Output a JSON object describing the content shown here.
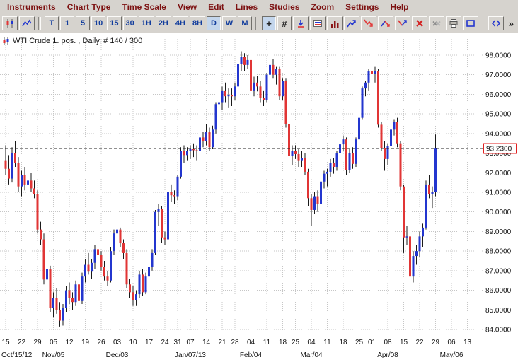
{
  "menu_bar": {
    "items": [
      "Instruments",
      "Chart Type",
      "Time Scale",
      "View",
      "Edit",
      "Lines",
      "Studies",
      "Zoom",
      "Settings",
      "Help"
    ]
  },
  "toolbar": {
    "chart_type_buttons": [
      {
        "name": "candlestick-chart-button",
        "icon": "candlestick-icon"
      },
      {
        "name": "line-chart-button",
        "icon": "line-chart-icon"
      }
    ],
    "timeframe_buttons": [
      "T",
      "1",
      "5",
      "10",
      "15",
      "30",
      "1H",
      "2H",
      "4H",
      "8H",
      "D",
      "W",
      "M"
    ],
    "active_timeframe": "D",
    "tool_buttons": [
      {
        "name": "crosshair-button",
        "label": "+",
        "active": true
      },
      {
        "name": "grid-button",
        "label": "#"
      },
      {
        "name": "data-cursor-button",
        "icon": "cursor-down-icon"
      },
      {
        "name": "chart-values-button",
        "icon": "values-icon"
      },
      {
        "name": "volume-button",
        "icon": "volume-icon"
      },
      {
        "name": "trend-up-button",
        "icon": "zigzag-up-icon"
      },
      {
        "name": "trend-down-button",
        "icon": "zigzag-down-icon"
      },
      {
        "name": "trend-up-down-button",
        "icon": "zigzag-mixed-icon"
      },
      {
        "name": "trend-down-up-button",
        "icon": "zigzag-mixed2-icon"
      },
      {
        "name": "delete-drawing-button",
        "icon": "delete-x-icon"
      },
      {
        "name": "delete-all-button",
        "icon": "double-x-icon"
      },
      {
        "name": "print-button",
        "icon": "printer-icon"
      },
      {
        "name": "copy-chart-button",
        "icon": "frame-icon"
      }
    ],
    "right_buttons": [
      {
        "name": "pane-arrows-button",
        "icon": "pane-arrows-icon"
      },
      {
        "name": "toolbar-overflow-button",
        "label": "»"
      }
    ]
  },
  "chart": {
    "title": "WTI Crude 1. pos. , Daily, # 140 / 300",
    "current_price_label": "93.2300"
  },
  "colors": {
    "candle_up": "#2336cf",
    "candle_down": "#e13535",
    "wick": "#1a1a1a",
    "grid": "#c6c6c6",
    "price_line": "#222222",
    "price_box_border": "#e02020",
    "scale_separator": "#555555"
  },
  "chart_data": {
    "type": "candlestick",
    "instrument": "WTI Crude",
    "timeframe": "Daily",
    "current_price": 93.23,
    "y_axis": {
      "min": 84,
      "max": 98,
      "step": 1,
      "labels": [
        "98.0000",
        "97.0000",
        "96.0000",
        "95.0000",
        "94.0000",
        "93.0000",
        "92.0000",
        "91.0000",
        "90.0000",
        "89.0000",
        "88.0000",
        "87.0000",
        "86.0000",
        "85.0000",
        "84.0000"
      ]
    },
    "x_axis": {
      "week_ticks": [
        [
          0,
          "15"
        ],
        [
          5,
          "22"
        ],
        [
          10,
          "29"
        ],
        [
          15,
          "05"
        ],
        [
          20,
          "12"
        ],
        [
          25,
          "19"
        ],
        [
          30,
          "26"
        ],
        [
          35,
          "03"
        ],
        [
          40,
          "10"
        ],
        [
          45,
          "17"
        ],
        [
          50,
          "24"
        ],
        [
          54,
          "31"
        ],
        [
          58,
          "07"
        ],
        [
          63,
          "14"
        ],
        [
          68,
          "21"
        ],
        [
          72,
          "28"
        ],
        [
          77,
          "04"
        ],
        [
          82,
          "11"
        ],
        [
          87,
          "18"
        ],
        [
          91,
          "25"
        ],
        [
          96,
          "04"
        ],
        [
          101,
          "11"
        ],
        [
          106,
          "18"
        ],
        [
          111,
          "25"
        ],
        [
          115,
          "01"
        ],
        [
          120,
          "08"
        ],
        [
          125,
          "15"
        ],
        [
          130,
          "22"
        ],
        [
          135,
          "29"
        ],
        [
          140,
          "06"
        ],
        [
          145,
          "13"
        ]
      ],
      "month_ticks": [
        [
          0,
          "Oct/15/12"
        ],
        [
          15,
          "Nov/05"
        ],
        [
          35,
          "Dec/03"
        ],
        [
          58,
          "Jan/07/13"
        ],
        [
          77,
          "Feb/04"
        ],
        [
          96,
          "Mar/04"
        ],
        [
          120,
          "Apr/08"
        ],
        [
          140,
          "May/06"
        ]
      ]
    },
    "candles": [
      [
        92.6,
        93.4,
        91.9,
        92.2
      ],
      [
        92.2,
        92.9,
        91.4,
        91.7
      ],
      [
        91.7,
        93.3,
        91.5,
        93.0
      ],
      [
        93.0,
        93.6,
        92.3,
        92.5
      ],
      [
        92.5,
        92.8,
        91.0,
        91.3
      ],
      [
        91.3,
        92.1,
        90.8,
        91.9
      ],
      [
        91.9,
        92.3,
        91.1,
        91.4
      ],
      [
        91.4,
        91.9,
        90.9,
        91.6
      ],
      [
        91.6,
        92.0,
        91.0,
        91.2
      ],
      [
        91.2,
        91.6,
        90.7,
        90.9
      ],
      [
        90.9,
        91.1,
        88.9,
        89.1
      ],
      [
        89.1,
        89.5,
        88.3,
        88.6
      ],
      [
        88.6,
        88.9,
        86.3,
        86.55
      ],
      [
        86.55,
        87.3,
        85.9,
        87.1
      ],
      [
        87.1,
        87.25,
        84.9,
        85.1
      ],
      [
        85.1,
        85.9,
        84.6,
        85.6
      ],
      [
        85.6,
        86.1,
        84.8,
        85.0
      ],
      [
        85.0,
        85.4,
        84.15,
        84.45
      ],
      [
        84.45,
        85.3,
        84.2,
        85.1
      ],
      [
        85.1,
        86.2,
        84.9,
        86.0
      ],
      [
        86.0,
        86.4,
        85.3,
        85.6
      ],
      [
        85.6,
        85.9,
        85.0,
        85.4
      ],
      [
        85.4,
        86.5,
        85.2,
        86.3
      ],
      [
        86.3,
        86.6,
        85.2,
        85.45
      ],
      [
        85.45,
        86.9,
        85.3,
        86.7
      ],
      [
        86.7,
        87.6,
        86.4,
        87.3
      ],
      [
        87.3,
        87.9,
        86.8,
        86.95
      ],
      [
        86.95,
        87.6,
        86.6,
        87.4
      ],
      [
        87.4,
        88.3,
        87.1,
        88.1
      ],
      [
        88.1,
        88.4,
        87.5,
        87.8
      ],
      [
        87.8,
        88.0,
        87.0,
        87.2
      ],
      [
        87.2,
        87.5,
        86.5,
        86.7
      ],
      [
        86.7,
        87.0,
        86.2,
        86.5
      ],
      [
        86.5,
        88.2,
        86.4,
        88.0
      ],
      [
        88.0,
        89.1,
        87.8,
        88.9
      ],
      [
        88.9,
        89.3,
        88.3,
        89.1
      ],
      [
        89.1,
        89.2,
        88.2,
        88.4
      ],
      [
        88.4,
        88.6,
        87.6,
        87.9
      ],
      [
        87.9,
        88.1,
        86.1,
        86.3
      ],
      [
        86.3,
        86.6,
        85.6,
        85.9
      ],
      [
        85.9,
        86.2,
        85.2,
        85.5
      ],
      [
        85.5,
        86.0,
        85.2,
        85.8
      ],
      [
        85.8,
        87.0,
        85.6,
        86.8
      ],
      [
        86.8,
        87.1,
        85.7,
        85.9
      ],
      [
        85.9,
        86.9,
        85.8,
        86.7
      ],
      [
        86.7,
        87.4,
        86.5,
        87.2
      ],
      [
        87.2,
        88.1,
        87.0,
        87.9
      ],
      [
        87.9,
        90.1,
        87.8,
        90.0
      ],
      [
        90.0,
        90.4,
        89.3,
        90.15
      ],
      [
        90.15,
        90.3,
        88.4,
        88.7
      ],
      [
        88.7,
        89.0,
        88.3,
        88.6
      ],
      [
        88.6,
        91.1,
        88.5,
        91.0
      ],
      [
        91.0,
        91.4,
        90.5,
        90.85
      ],
      [
        90.85,
        91.1,
        90.4,
        90.8
      ],
      [
        90.8,
        91.9,
        90.6,
        91.8
      ],
      [
        91.8,
        93.3,
        91.7,
        93.1
      ],
      [
        93.1,
        93.4,
        92.5,
        92.9
      ],
      [
        92.9,
        93.3,
        92.6,
        93.1
      ],
      [
        93.1,
        93.4,
        92.7,
        93.2
      ],
      [
        93.2,
        93.5,
        92.8,
        93.15
      ],
      [
        93.15,
        93.4,
        92.6,
        93.1
      ],
      [
        93.1,
        94.0,
        92.9,
        93.8
      ],
      [
        93.8,
        94.1,
        93.3,
        93.6
      ],
      [
        93.6,
        94.5,
        93.4,
        94.1
      ],
      [
        94.1,
        94.3,
        93.1,
        93.3
      ],
      [
        93.3,
        94.4,
        93.2,
        94.2
      ],
      [
        94.2,
        95.6,
        94.0,
        95.5
      ],
      [
        95.5,
        95.9,
        95.0,
        95.6
      ],
      [
        95.6,
        96.4,
        95.2,
        96.2
      ],
      [
        96.2,
        96.6,
        95.6,
        95.9
      ],
      [
        95.9,
        96.3,
        95.3,
        95.95
      ],
      [
        95.95,
        96.3,
        95.4,
        95.9
      ],
      [
        95.9,
        96.6,
        95.7,
        96.4
      ],
      [
        96.4,
        97.6,
        96.3,
        97.55
      ],
      [
        97.55,
        98.2,
        97.2,
        97.9
      ],
      [
        97.9,
        98.1,
        97.2,
        97.5
      ],
      [
        97.5,
        98.0,
        97.3,
        97.75
      ],
      [
        97.75,
        97.9,
        96.0,
        96.2
      ],
      [
        96.2,
        96.9,
        95.9,
        96.6
      ],
      [
        96.6,
        96.95,
        96.15,
        96.4
      ],
      [
        96.4,
        96.7,
        95.6,
        95.8
      ],
      [
        95.8,
        96.2,
        95.4,
        95.7
      ],
      [
        95.7,
        97.1,
        95.6,
        97.0
      ],
      [
        97.0,
        97.7,
        96.8,
        97.5
      ],
      [
        97.5,
        97.8,
        96.8,
        97.0
      ],
      [
        97.0,
        97.4,
        96.5,
        97.3
      ],
      [
        97.3,
        97.4,
        95.7,
        95.9
      ],
      [
        95.9,
        96.8,
        95.7,
        96.7
      ],
      [
        96.7,
        96.8,
        94.3,
        94.5
      ],
      [
        94.5,
        94.6,
        92.6,
        92.85
      ],
      [
        92.85,
        93.4,
        92.4,
        93.1
      ],
      [
        93.1,
        93.4,
        92.7,
        92.95
      ],
      [
        92.95,
        93.2,
        92.3,
        92.6
      ],
      [
        92.6,
        93.1,
        92.3,
        92.75
      ],
      [
        92.75,
        93.0,
        91.9,
        92.05
      ],
      [
        92.05,
        92.2,
        90.3,
        90.7
      ],
      [
        90.7,
        90.9,
        89.3,
        90.1
      ],
      [
        90.1,
        91.0,
        89.9,
        90.8
      ],
      [
        90.8,
        91.1,
        90.0,
        90.4
      ],
      [
        90.4,
        91.7,
        90.3,
        91.55
      ],
      [
        91.55,
        92.1,
        91.2,
        91.95
      ],
      [
        91.95,
        92.2,
        91.3,
        92.05
      ],
      [
        92.05,
        92.7,
        91.8,
        92.5
      ],
      [
        92.5,
        92.75,
        91.95,
        92.3
      ],
      [
        92.3,
        93.1,
        92.1,
        93.0
      ],
      [
        93.0,
        93.6,
        92.8,
        93.45
      ],
      [
        93.45,
        93.9,
        93.1,
        93.7
      ],
      [
        93.7,
        93.8,
        91.9,
        92.15
      ],
      [
        92.15,
        93.2,
        92.0,
        93.0
      ],
      [
        93.0,
        93.3,
        92.2,
        92.45
      ],
      [
        92.45,
        93.8,
        92.3,
        93.7
      ],
      [
        93.7,
        94.9,
        93.6,
        94.8
      ],
      [
        94.8,
        96.4,
        94.7,
        96.3
      ],
      [
        96.3,
        96.7,
        95.9,
        96.6
      ],
      [
        96.6,
        97.3,
        96.2,
        97.2
      ],
      [
        97.2,
        97.8,
        96.8,
        97.05
      ],
      [
        97.05,
        97.4,
        96.6,
        97.2
      ],
      [
        97.2,
        97.3,
        94.3,
        94.45
      ],
      [
        94.45,
        94.6,
        93.1,
        93.25
      ],
      [
        93.25,
        93.6,
        92.1,
        92.7
      ],
      [
        92.7,
        93.5,
        92.4,
        93.35
      ],
      [
        93.35,
        94.3,
        93.2,
        94.2
      ],
      [
        94.2,
        94.7,
        93.9,
        94.6
      ],
      [
        94.6,
        94.8,
        93.3,
        93.5
      ],
      [
        93.5,
        93.6,
        91.1,
        91.3
      ],
      [
        91.3,
        91.4,
        87.9,
        88.7
      ],
      [
        88.7,
        89.3,
        88.3,
        88.75
      ],
      [
        88.75,
        88.8,
        85.65,
        86.7
      ],
      [
        86.7,
        88.0,
        86.4,
        87.75
      ],
      [
        87.75,
        88.3,
        87.3,
        88.0
      ],
      [
        88.0,
        89.0,
        87.7,
        88.75
      ],
      [
        88.75,
        89.4,
        88.2,
        89.2
      ],
      [
        89.2,
        91.6,
        89.1,
        91.4
      ],
      [
        91.4,
        91.9,
        90.7,
        90.9
      ],
      [
        90.9,
        91.3,
        90.2,
        91.0
      ],
      [
        91.0,
        93.95,
        90.8,
        93.23
      ]
    ]
  }
}
